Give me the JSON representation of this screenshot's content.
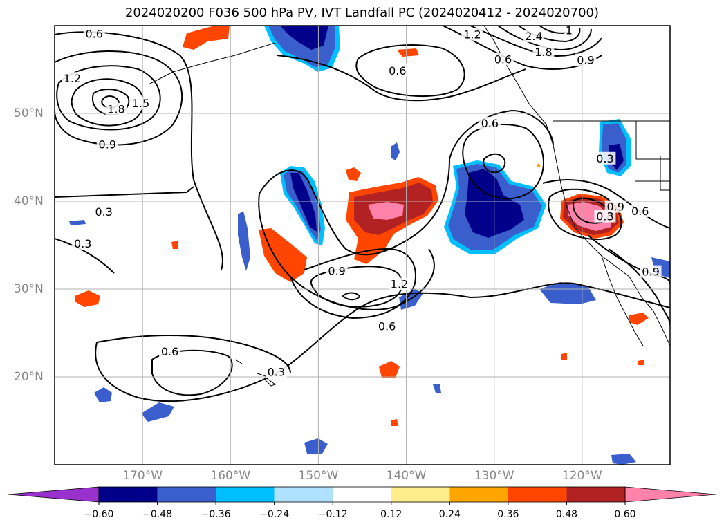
{
  "title": "2024020200 F036 500 hPa PV, IVT Landfall PC (2024020412 - 2024020700)",
  "colors": {
    "ocean": "#ffffff",
    "contour": "#000000",
    "gridline": "#b0b0b0"
  },
  "chart_data": {
    "type": "heatmap",
    "projection": "cylindrical",
    "xlim": [
      -180,
      -110
    ],
    "ylim": [
      10,
      60
    ],
    "x_ticks": [
      {
        "value": -170,
        "label": "170°W"
      },
      {
        "value": -160,
        "label": "160°W"
      },
      {
        "value": -150,
        "label": "150°W"
      },
      {
        "value": -140,
        "label": "140°W"
      },
      {
        "value": -130,
        "label": "130°W"
      },
      {
        "value": -120,
        "label": "120°W"
      }
    ],
    "y_ticks": [
      {
        "value": 20,
        "label": "20°N"
      },
      {
        "value": 30,
        "label": "30°N"
      },
      {
        "value": 40,
        "label": "40°N"
      },
      {
        "value": 50,
        "label": "50°N"
      }
    ],
    "grid": true,
    "colorbar": {
      "orientation": "horizontal",
      "extend": "both",
      "levels": [
        -0.6,
        -0.48,
        -0.36,
        -0.24,
        -0.12,
        0.12,
        0.24,
        0.36,
        0.48,
        0.6
      ],
      "tick_labels": [
        "−0.60",
        "−0.48",
        "−0.36",
        "−0.24",
        "−0.12",
        "0.12",
        "0.24",
        "0.36",
        "0.48",
        "0.60"
      ],
      "colors": [
        "#9932cc",
        "#00008b",
        "#3a5fcd",
        "#00bfff",
        "#b0e2ff",
        "#ffffff",
        "#ffec8b",
        "#ffa500",
        "#ff4500",
        "#b22222",
        "#ff82ab"
      ]
    },
    "contour_labels": [
      {
        "lon": -175.5,
        "lat": 59.1,
        "text": "0.6"
      },
      {
        "lon": -178.0,
        "lat": 54.0,
        "text": "1.2"
      },
      {
        "lon": -173.0,
        "lat": 50.5,
        "text": "1.8"
      },
      {
        "lon": -170.2,
        "lat": 51.2,
        "text": "1.5"
      },
      {
        "lon": -174.0,
        "lat": 46.5,
        "text": "0.9"
      },
      {
        "lon": -174.4,
        "lat": 38.8,
        "text": "0.3"
      },
      {
        "lon": -176.8,
        "lat": 35.2,
        "text": "0.3"
      },
      {
        "lon": -147.9,
        "lat": 32.1,
        "text": "0.9"
      },
      {
        "lon": -140.8,
        "lat": 30.6,
        "text": "1.2"
      },
      {
        "lon": -142.2,
        "lat": 25.8,
        "text": "0.6"
      },
      {
        "lon": -166.9,
        "lat": 22.9,
        "text": "0.6"
      },
      {
        "lon": -154.8,
        "lat": 20.6,
        "text": "0.3"
      },
      {
        "lon": -141.0,
        "lat": 54.9,
        "text": "0.6"
      },
      {
        "lon": -130.5,
        "lat": 48.9,
        "text": "0.6"
      },
      {
        "lon": -132.5,
        "lat": 59.0,
        "text": "1.2"
      },
      {
        "lon": -125.5,
        "lat": 58.8,
        "text": "2.4"
      },
      {
        "lon": -124.4,
        "lat": 57.0,
        "text": "1.8"
      },
      {
        "lon": -121.5,
        "lat": 59.5,
        "text": "1"
      },
      {
        "lon": -119.6,
        "lat": 56.1,
        "text": "0.9"
      },
      {
        "lon": -129.0,
        "lat": 56.2,
        "text": "0.6"
      },
      {
        "lon": -117.4,
        "lat": 44.9,
        "text": "0.3"
      },
      {
        "lon": -116.2,
        "lat": 39.4,
        "text": "0.9"
      },
      {
        "lon": -117.4,
        "lat": 38.3,
        "text": "0.3"
      },
      {
        "lon": -113.4,
        "lat": 38.9,
        "text": "0.6"
      },
      {
        "lon": -112.2,
        "lat": 32.0,
        "text": "0.9"
      }
    ]
  }
}
